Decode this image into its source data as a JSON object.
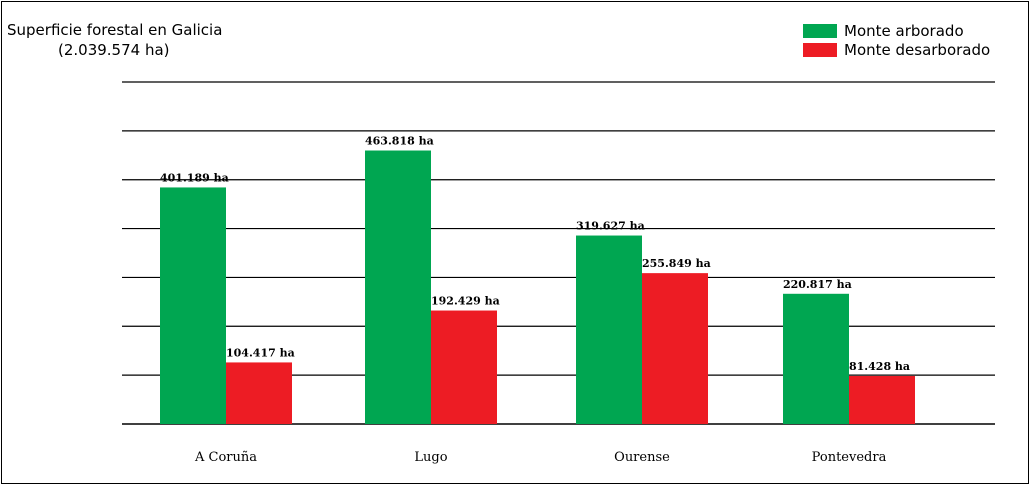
{
  "chart_data": {
    "type": "bar",
    "title": "Superficie forestal en Galicia",
    "subtitle": "(2.039.574 ha)",
    "categories": [
      "A Coruña",
      "Lugo",
      "Ourense",
      "Pontevedra"
    ],
    "series": [
      {
        "name": "Monte arborado",
        "color": "#00a651",
        "values": [
          401189,
          463818,
          319627,
          220817
        ],
        "labels": [
          "401.189 ha",
          "463.818 ha",
          "319.627 ha",
          "220.817 ha"
        ]
      },
      {
        "name": "Monte desarborado",
        "color": "#ed1c24",
        "values": [
          104417,
          192429,
          255849,
          81428
        ],
        "labels": [
          "104.417 ha",
          "192.429 ha",
          "255.849 ha",
          "81.428 ha"
        ]
      }
    ],
    "ylim": [
      0,
      580000
    ],
    "grid": true,
    "gridline_count": 7,
    "legend_position": "top-right",
    "xlabel": "",
    "ylabel": ""
  }
}
